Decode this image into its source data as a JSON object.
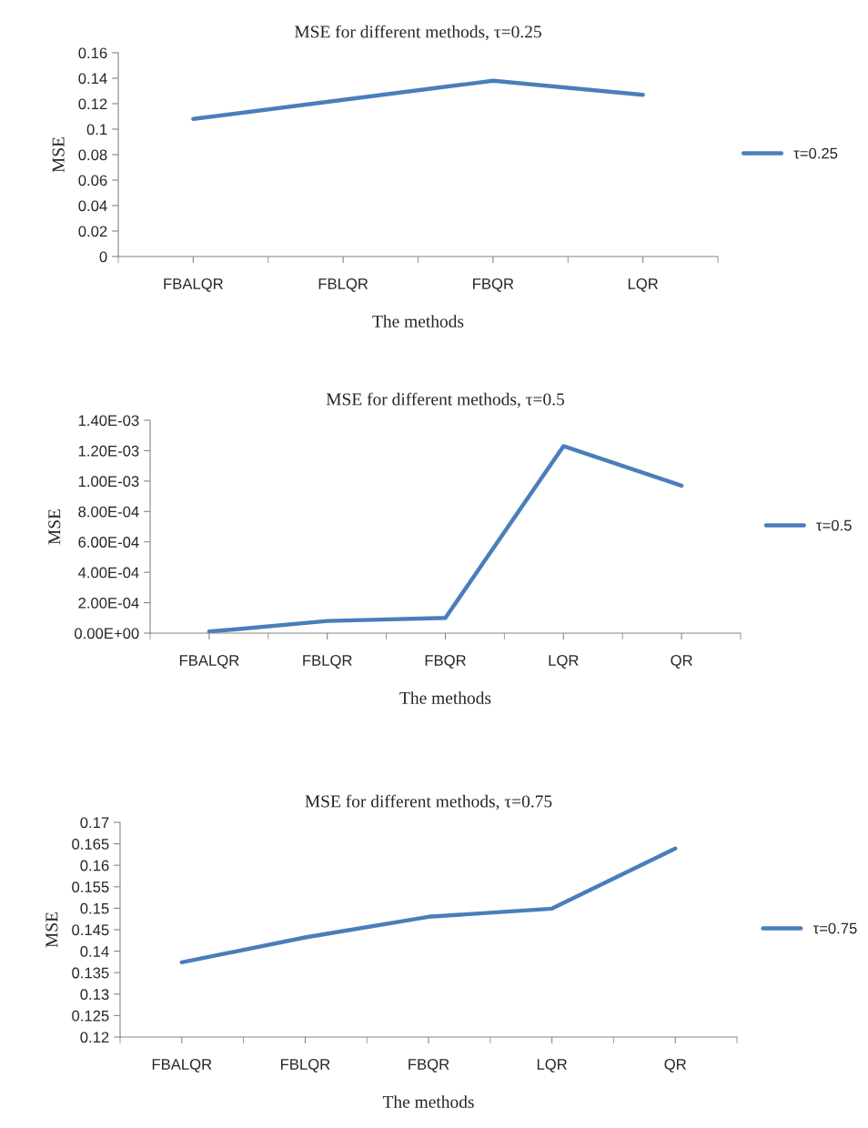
{
  "chart_data": [
    {
      "type": "line",
      "title": "MSE for different methods, τ=0.25",
      "xlabel": "The methods",
      "ylabel": "MSE",
      "categories": [
        "FBALQR",
        "FBLQR",
        "FBQR",
        "LQR"
      ],
      "series": [
        {
          "name": "τ=0.25",
          "color": "#4a7ebb",
          "values": [
            0.108,
            0.123,
            0.138,
            0.127
          ]
        }
      ],
      "ylim": [
        0,
        0.16
      ],
      "yticks": [
        0,
        0.02,
        0.04,
        0.06,
        0.08,
        0.1,
        0.12,
        0.14,
        0.16
      ],
      "legend": "right",
      "grid": false
    },
    {
      "type": "line",
      "title": "MSE for different methods, τ=0.5",
      "xlabel": "The methods",
      "ylabel": "MSE",
      "categories": [
        "FBALQR",
        "FBLQR",
        "FBQR",
        "LQR",
        "QR"
      ],
      "series": [
        {
          "name": "τ=0.5",
          "color": "#4a7ebb",
          "values": [
            1e-05,
            8e-05,
            0.0001,
            0.00123,
            0.00097
          ]
        }
      ],
      "ylim": [
        0,
        0.0014
      ],
      "yticks": [
        {
          "value": 0,
          "label": "0.00E+00"
        },
        {
          "value": 0.0002,
          "label": "2.00E-04"
        },
        {
          "value": 0.0004,
          "label": "4.00E-04"
        },
        {
          "value": 0.0006,
          "label": "6.00E-04"
        },
        {
          "value": 0.0008,
          "label": "8.00E-04"
        },
        {
          "value": 0.001,
          "label": "1.00E-03"
        },
        {
          "value": 0.0012,
          "label": "1.20E-03"
        },
        {
          "value": 0.0014,
          "label": "1.40E-03"
        }
      ],
      "legend": "right",
      "grid": false
    },
    {
      "type": "line",
      "title": "MSE for different methods, τ=0.75",
      "xlabel": "The methods",
      "ylabel": "MSE",
      "categories": [
        "FBALQR",
        "FBLQR",
        "FBQR",
        "LQR",
        "QR"
      ],
      "series": [
        {
          "name": "τ=0.75",
          "color": "#4a7ebb",
          "values": [
            0.1374,
            0.1432,
            0.148,
            0.1499,
            0.1639
          ]
        }
      ],
      "ylim": [
        0.12,
        0.17
      ],
      "yticks": [
        0.12,
        0.125,
        0.13,
        0.135,
        0.14,
        0.145,
        0.15,
        0.155,
        0.16,
        0.165,
        0.17
      ],
      "legend": "right",
      "grid": false
    }
  ]
}
